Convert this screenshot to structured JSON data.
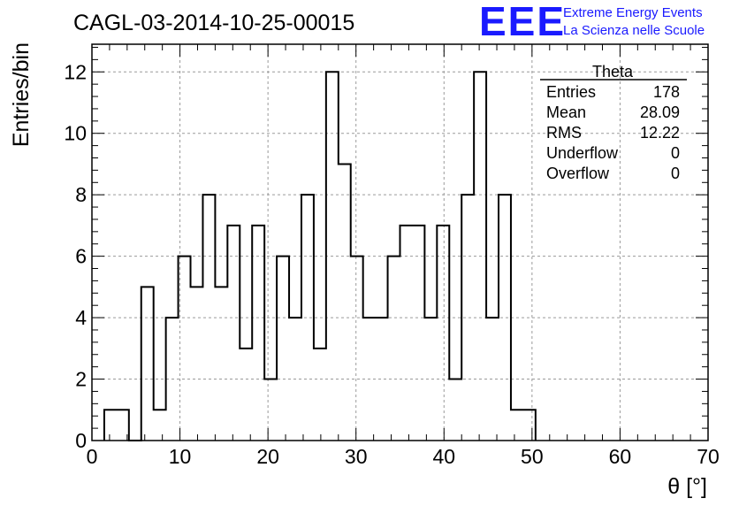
{
  "header": {
    "title": "CAGL-03-2014-10-25-00015",
    "logo_text": "EEE",
    "logo_line1": "Extreme Energy Events",
    "logo_line2": "La Scienza nelle Scuole",
    "logo_color": "#1a1aff"
  },
  "stats": {
    "name": "Theta",
    "rows": [
      {
        "label": "Entries",
        "value": "178"
      },
      {
        "label": "Mean",
        "value": "28.09"
      },
      {
        "label": "RMS",
        "value": "12.22"
      },
      {
        "label": "Underflow",
        "value": "0"
      },
      {
        "label": "Overflow",
        "value": "0"
      }
    ]
  },
  "chart_data": {
    "type": "bar",
    "style": "step-histogram",
    "title": "CAGL-03-2014-10-25-00015",
    "xlabel": "θ [°]",
    "ylabel": "Entries/bin",
    "xlim": [
      0,
      70
    ],
    "ylim": [
      0,
      12.9
    ],
    "grid": true,
    "x_ticks": [
      0,
      10,
      20,
      30,
      40,
      50,
      60,
      70
    ],
    "y_ticks": [
      0,
      2,
      4,
      6,
      8,
      10,
      12
    ],
    "bin_edges": [
      1.4,
      2.8,
      4.2,
      5.6,
      7.0,
      8.4,
      9.8,
      11.2,
      12.6,
      14.0,
      15.4,
      16.8,
      18.2,
      19.6,
      21.0,
      22.4,
      23.8,
      25.2,
      26.6,
      28.0,
      29.4,
      30.8,
      32.2,
      33.6,
      35.0,
      36.4,
      37.8,
      39.2,
      40.6,
      42.0,
      43.4,
      44.8,
      46.2,
      47.6,
      49.0,
      50.4
    ],
    "values": [
      1,
      1,
      0,
      5,
      1,
      4,
      6,
      5,
      8,
      5,
      7,
      3,
      7,
      2,
      6,
      4,
      8,
      3,
      12,
      9,
      6,
      4,
      4,
      6,
      7,
      7,
      4,
      7,
      2,
      8,
      12,
      4,
      8,
      1,
      1
    ]
  }
}
